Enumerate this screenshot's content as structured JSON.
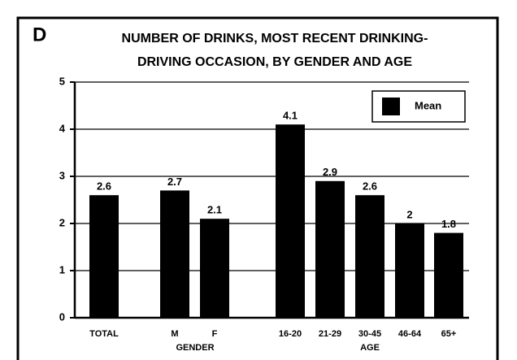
{
  "chart_data": {
    "type": "bar",
    "panel_label": "D",
    "title": [
      "NUMBER OF DRINKS, MOST RECENT DRINKING-",
      "DRIVING OCCASION, BY GENDER AND AGE"
    ],
    "categories": [
      "TOTAL",
      "M",
      "F",
      "16-20",
      "21-29",
      "30-45",
      "46-64",
      "65+"
    ],
    "group_labels": [
      "GENDER",
      "AGE"
    ],
    "series": [
      {
        "name": "Mean",
        "color": "#000000",
        "values": [
          2.6,
          2.7,
          2.1,
          4.1,
          2.9,
          2.6,
          2,
          1.8
        ]
      }
    ],
    "ylim": [
      0,
      5
    ],
    "yticks": [
      0,
      1,
      2,
      3,
      4,
      5
    ],
    "grid": true,
    "legend": "upper right"
  }
}
